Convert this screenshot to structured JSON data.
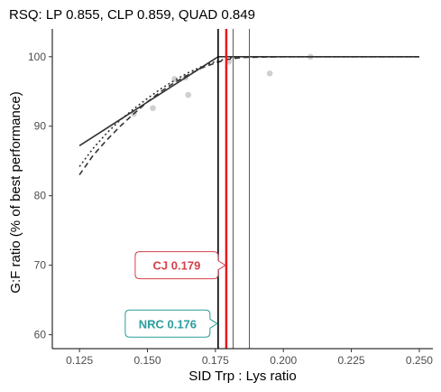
{
  "chart_data": {
    "type": "scatter",
    "title": "RSQ: LP 0.855, CLP 0.859, QUAD 0.849",
    "xlabel": "SID Trp : Lys ratio",
    "ylabel": "G:F ratio (% of best performance)",
    "xlim": [
      0.115,
      0.255
    ],
    "ylim": [
      58,
      104
    ],
    "xticks": [
      "0.125",
      "0.150",
      "0.175",
      "0.200",
      "0.225",
      "0.250"
    ],
    "yticks": [
      "60",
      "70",
      "80",
      "90",
      "100"
    ],
    "grid": false,
    "points": [
      {
        "x": 0.145,
        "y": 91.8
      },
      {
        "x": 0.152,
        "y": 92.6
      },
      {
        "x": 0.16,
        "y": 96.8
      },
      {
        "x": 0.164,
        "y": 97.0
      },
      {
        "x": 0.165,
        "y": 94.5
      },
      {
        "x": 0.18,
        "y": 99.3
      },
      {
        "x": 0.195,
        "y": 97.6
      },
      {
        "x": 0.21,
        "y": 100.0
      }
    ],
    "fits": [
      {
        "line_style": "solid",
        "points": [
          [
            0.125,
            87.2
          ],
          [
            0.176,
            100
          ],
          [
            0.25,
            100
          ]
        ]
      },
      {
        "line_style": "dashed",
        "points": [
          [
            0.125,
            83.0
          ],
          [
            0.13,
            85.8
          ],
          [
            0.135,
            88.0
          ],
          [
            0.14,
            90.0
          ],
          [
            0.145,
            91.8
          ],
          [
            0.15,
            93.5
          ],
          [
            0.155,
            95.0
          ],
          [
            0.16,
            96.3
          ],
          [
            0.165,
            97.4
          ],
          [
            0.17,
            98.4
          ],
          [
            0.175,
            99.1
          ],
          [
            0.179,
            99.6
          ],
          [
            0.185,
            99.9
          ],
          [
            0.2,
            100
          ],
          [
            0.25,
            100
          ]
        ]
      },
      {
        "line_style": "dotted",
        "points": [
          [
            0.125,
            84.2
          ],
          [
            0.13,
            86.8
          ],
          [
            0.135,
            89.0
          ],
          [
            0.14,
            90.9
          ],
          [
            0.145,
            92.5
          ],
          [
            0.15,
            94.0
          ],
          [
            0.155,
            95.4
          ],
          [
            0.16,
            96.6
          ],
          [
            0.165,
            97.7
          ],
          [
            0.17,
            98.6
          ],
          [
            0.175,
            99.3
          ],
          [
            0.18,
            99.8
          ],
          [
            0.184,
            100
          ],
          [
            0.25,
            100
          ]
        ]
      }
    ],
    "vertical_lines": [
      {
        "x": 0.176,
        "color": "#000000"
      },
      {
        "x": 0.1815,
        "color": "#555555"
      },
      {
        "x": 0.1875,
        "color": "#555555"
      },
      {
        "x": 0.179,
        "color": "#e41a1c"
      }
    ],
    "annotations": [
      {
        "text": "CJ 0.179",
        "x": 0.179,
        "y": 70,
        "color": "#d6404a"
      },
      {
        "text": "NRC 0.176",
        "x": 0.176,
        "y": 61.6,
        "color": "#2a9d9d"
      }
    ]
  }
}
